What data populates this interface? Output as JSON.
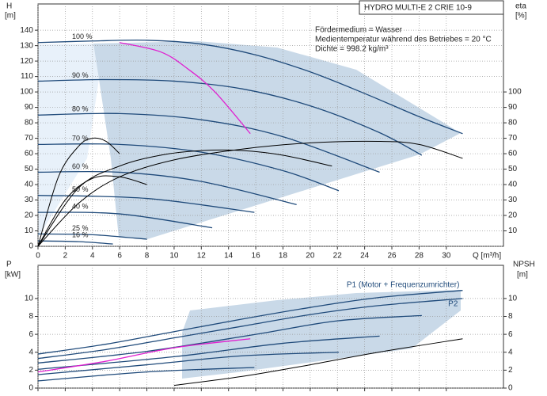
{
  "chart_data": [
    {
      "type": "line",
      "title": "HYDRO MULTI-E 2 CRIE 10-9",
      "annotations": [
        "Fördermedium = Wasser",
        "Medientemperatur während des Betriebes = 20 °C",
        "Dichte = 998.2 kg/m³"
      ],
      "ylabel": "H",
      "yunit": "[m]",
      "y2label": "eta",
      "y2unit": "[%]",
      "xlabel": "Q [m³/h]",
      "xlim": [
        0,
        34.2
      ],
      "xticks": [
        0,
        2,
        4,
        6,
        8,
        10,
        12,
        14,
        16,
        18,
        20,
        22,
        24,
        26,
        28,
        30
      ],
      "ylim": [
        0,
        157
      ],
      "yticks": [
        0,
        10,
        20,
        30,
        40,
        50,
        60,
        70,
        80,
        90,
        100,
        110,
        120,
        130,
        140
      ],
      "y2lim": [
        0,
        157
      ],
      "y2ticks": [
        10,
        20,
        30,
        40,
        50,
        60,
        70,
        80,
        90,
        100
      ],
      "grid": true,
      "show_xtick_labels": true,
      "series": [
        {
          "name": "100 %",
          "color": "#1f4a7a",
          "x": [
            0,
            4,
            8,
            12,
            16,
            20,
            24,
            28,
            31.2
          ],
          "values": [
            132,
            133,
            133.5,
            131,
            124,
            113,
            99,
            84,
            73
          ]
        },
        {
          "name": "90 %",
          "color": "#1f4a7a",
          "x": [
            0,
            5,
            10,
            15,
            20,
            25,
            28.2
          ],
          "values": [
            107,
            108,
            107,
            102,
            91,
            74,
            59
          ]
        },
        {
          "name": "80 %",
          "color": "#1f4a7a",
          "x": [
            0,
            6,
            12,
            18,
            25.1
          ],
          "values": [
            85,
            86,
            82,
            71,
            48
          ]
        },
        {
          "name": "70 %",
          "color": "#1f4a7a",
          "x": [
            0,
            6,
            12,
            18,
            22.1
          ],
          "values": [
            66,
            66,
            61,
            49,
            36
          ]
        },
        {
          "name": "60 %",
          "color": "#1f4a7a",
          "x": [
            0,
            6,
            12,
            19
          ],
          "values": [
            48,
            48,
            42,
            27
          ]
        },
        {
          "name": "50 %",
          "color": "#1f4a7a",
          "x": [
            0,
            8,
            15.9
          ],
          "values": [
            33,
            31,
            22
          ]
        },
        {
          "name": "40 %",
          "color": "#1f4a7a",
          "x": [
            0,
            6,
            12.8
          ],
          "values": [
            22,
            21,
            12
          ]
        },
        {
          "name": "25 %",
          "color": "#1f4a7a",
          "x": [
            0,
            4,
            8
          ],
          "values": [
            8,
            7.5,
            4.6
          ]
        },
        {
          "name": "16 %",
          "color": "#1f4a7a",
          "x": [
            0,
            3,
            5.5
          ],
          "values": [
            3.5,
            3,
            1.5
          ]
        },
        {
          "color": "#e020d0",
          "x": [
            6,
            9,
            11,
            13,
            15.6
          ],
          "values": [
            132,
            126,
            115,
            100,
            73
          ]
        },
        {
          "color": "#000000",
          "axis": "y2",
          "x": [
            0,
            3,
            6,
            10,
            15,
            20,
            25,
            28,
            31.2
          ],
          "values": [
            0,
            28,
            45,
            56,
            63,
            67,
            68,
            66,
            57
          ]
        },
        {
          "color": "#000000",
          "axis": "y2",
          "x": [
            0,
            3,
            6,
            9,
            12,
            15,
            18,
            21.6
          ],
          "values": [
            0,
            38,
            52,
            59,
            62,
            62,
            59,
            52
          ]
        },
        {
          "color": "#000000",
          "axis": "y2",
          "x": [
            0,
            1.5,
            3,
            4,
            5,
            6
          ],
          "values": [
            0,
            45,
            65,
            70,
            68,
            60
          ]
        },
        {
          "color": "#000000",
          "axis": "y2",
          "x": [
            0,
            2,
            4,
            6,
            8
          ],
          "values": [
            0,
            30,
            44,
            45,
            40
          ]
        }
      ]
    },
    {
      "type": "line",
      "ylabel": "P",
      "yunit": "[kW]",
      "y2label": "NPSH",
      "y2unit": "[m]",
      "xlim": [
        0,
        34.2
      ],
      "xticks": [
        0,
        2,
        4,
        6,
        8,
        10,
        12,
        14,
        16,
        18,
        20,
        22,
        24,
        26,
        28,
        30
      ],
      "ylim": [
        0,
        13.7
      ],
      "yticks": [
        0,
        2,
        4,
        6,
        8,
        10
      ],
      "y2lim": [
        0,
        13.7
      ],
      "y2ticks": [
        0,
        2,
        4,
        6,
        8,
        10
      ],
      "grid": true,
      "show_xtick_labels": false,
      "series": [
        {
          "name": "P1 (Motor + Frequenzumrichter)",
          "color": "#1f4a7a",
          "x": [
            0,
            5,
            10,
            15,
            20,
            25,
            31.2
          ],
          "values": [
            3.8,
            4.9,
            6.3,
            7.7,
            9.0,
            10.1,
            10.9
          ]
        },
        {
          "name": "P2",
          "color": "#1f4a7a",
          "x": [
            0,
            5,
            10,
            15,
            20,
            25,
            31.2
          ],
          "values": [
            3.3,
            4.3,
            5.6,
            6.9,
            8.2,
            9.2,
            10.0
          ]
        },
        {
          "color": "#1f4a7a",
          "x": [
            0,
            8,
            16,
            22,
            28.2
          ],
          "values": [
            2.8,
            4.1,
            6.0,
            7.5,
            8.1
          ]
        },
        {
          "color": "#1f4a7a",
          "x": [
            0,
            10,
            18,
            25.1
          ],
          "values": [
            2.1,
            3.5,
            5.0,
            5.8
          ]
        },
        {
          "color": "#1f4a7a",
          "x": [
            0,
            8,
            15,
            22.1
          ],
          "values": [
            1.5,
            2.6,
            3.6,
            4.0
          ]
        },
        {
          "color": "#1f4a7a",
          "x": [
            0,
            8,
            15.9
          ],
          "values": [
            0.8,
            1.8,
            2.3
          ]
        },
        {
          "color": "#e020d0",
          "x": [
            0,
            5,
            10,
            15.6
          ],
          "values": [
            1.8,
            3.0,
            4.5,
            5.5
          ]
        },
        {
          "color": "#000000",
          "axis": "y2",
          "x": [
            10,
            15,
            20,
            25,
            31.2
          ],
          "values": [
            0.3,
            1.3,
            2.6,
            4.0,
            5.5
          ]
        }
      ]
    }
  ]
}
